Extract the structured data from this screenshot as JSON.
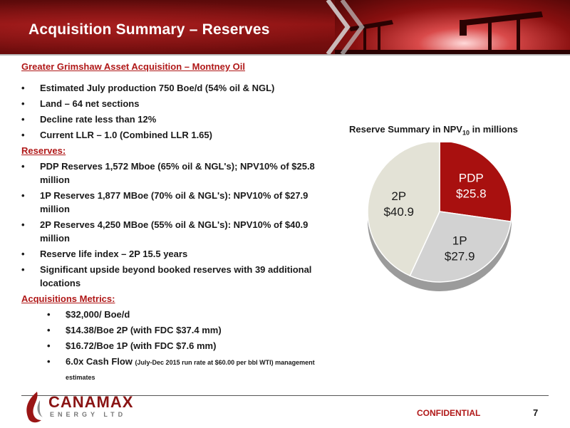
{
  "header": {
    "title": "Acquisition Summary – Reserves"
  },
  "subhead": "Greater Grimshaw Asset Acquisition – Montney Oil",
  "bullets_top": [
    "Estimated July production 750 Boe/d (54% oil & NGL)",
    "Land – 64 net sections",
    "Decline rate less than 12%",
    "Current LLR – 1.0 (Combined LLR 1.65)"
  ],
  "reserves_heading": "Reserves:",
  "reserves": [
    "PDP Reserves 1,572 Mboe (65% oil & NGL's); NPV10% of $25.8 million",
    "1P Reserves 1,877 MBoe (70% oil & NGL's): NPV10% of $27.9 million",
    "2P Reserves 4,250 MBoe (55% oil & NGL's): NPV10% of $40.9 million",
    "Reserve life index – 2P 15.5 years",
    "Significant upside beyond booked reserves with 39 additional locations"
  ],
  "metrics_heading": "Acquisitions Metrics: ",
  "metrics": [
    "$32,000/ Boe/d",
    "$14.38/Boe 2P (with FDC $37.4 mm)",
    "$16.72/Boe 1P (with FDC $7.6 mm)"
  ],
  "metric_last": {
    "main": "6.0x Cash Flow ",
    "note": "(July-Dec 2015 run rate at $60.00 per bbl WTI) management estimates"
  },
  "bullet_char": "•",
  "chart_data": {
    "type": "pie",
    "title": "Reserve Summary in NPV",
    "title_sub": "10",
    "title_suffix": " in millions",
    "categories": [
      "PDP",
      "1P",
      "2P"
    ],
    "values": [
      25.8,
      27.9,
      40.9
    ],
    "value_labels": [
      "$25.8",
      "$27.9",
      "$40.9"
    ],
    "colors": [
      "#a8100f",
      "#d2d2d2",
      "#e3e2d6"
    ]
  },
  "footer": {
    "logo_text": "CANAMAX",
    "logo_sub": "ENERGY LTD",
    "confidential": "CONFIDENTIAL",
    "page": "7"
  }
}
